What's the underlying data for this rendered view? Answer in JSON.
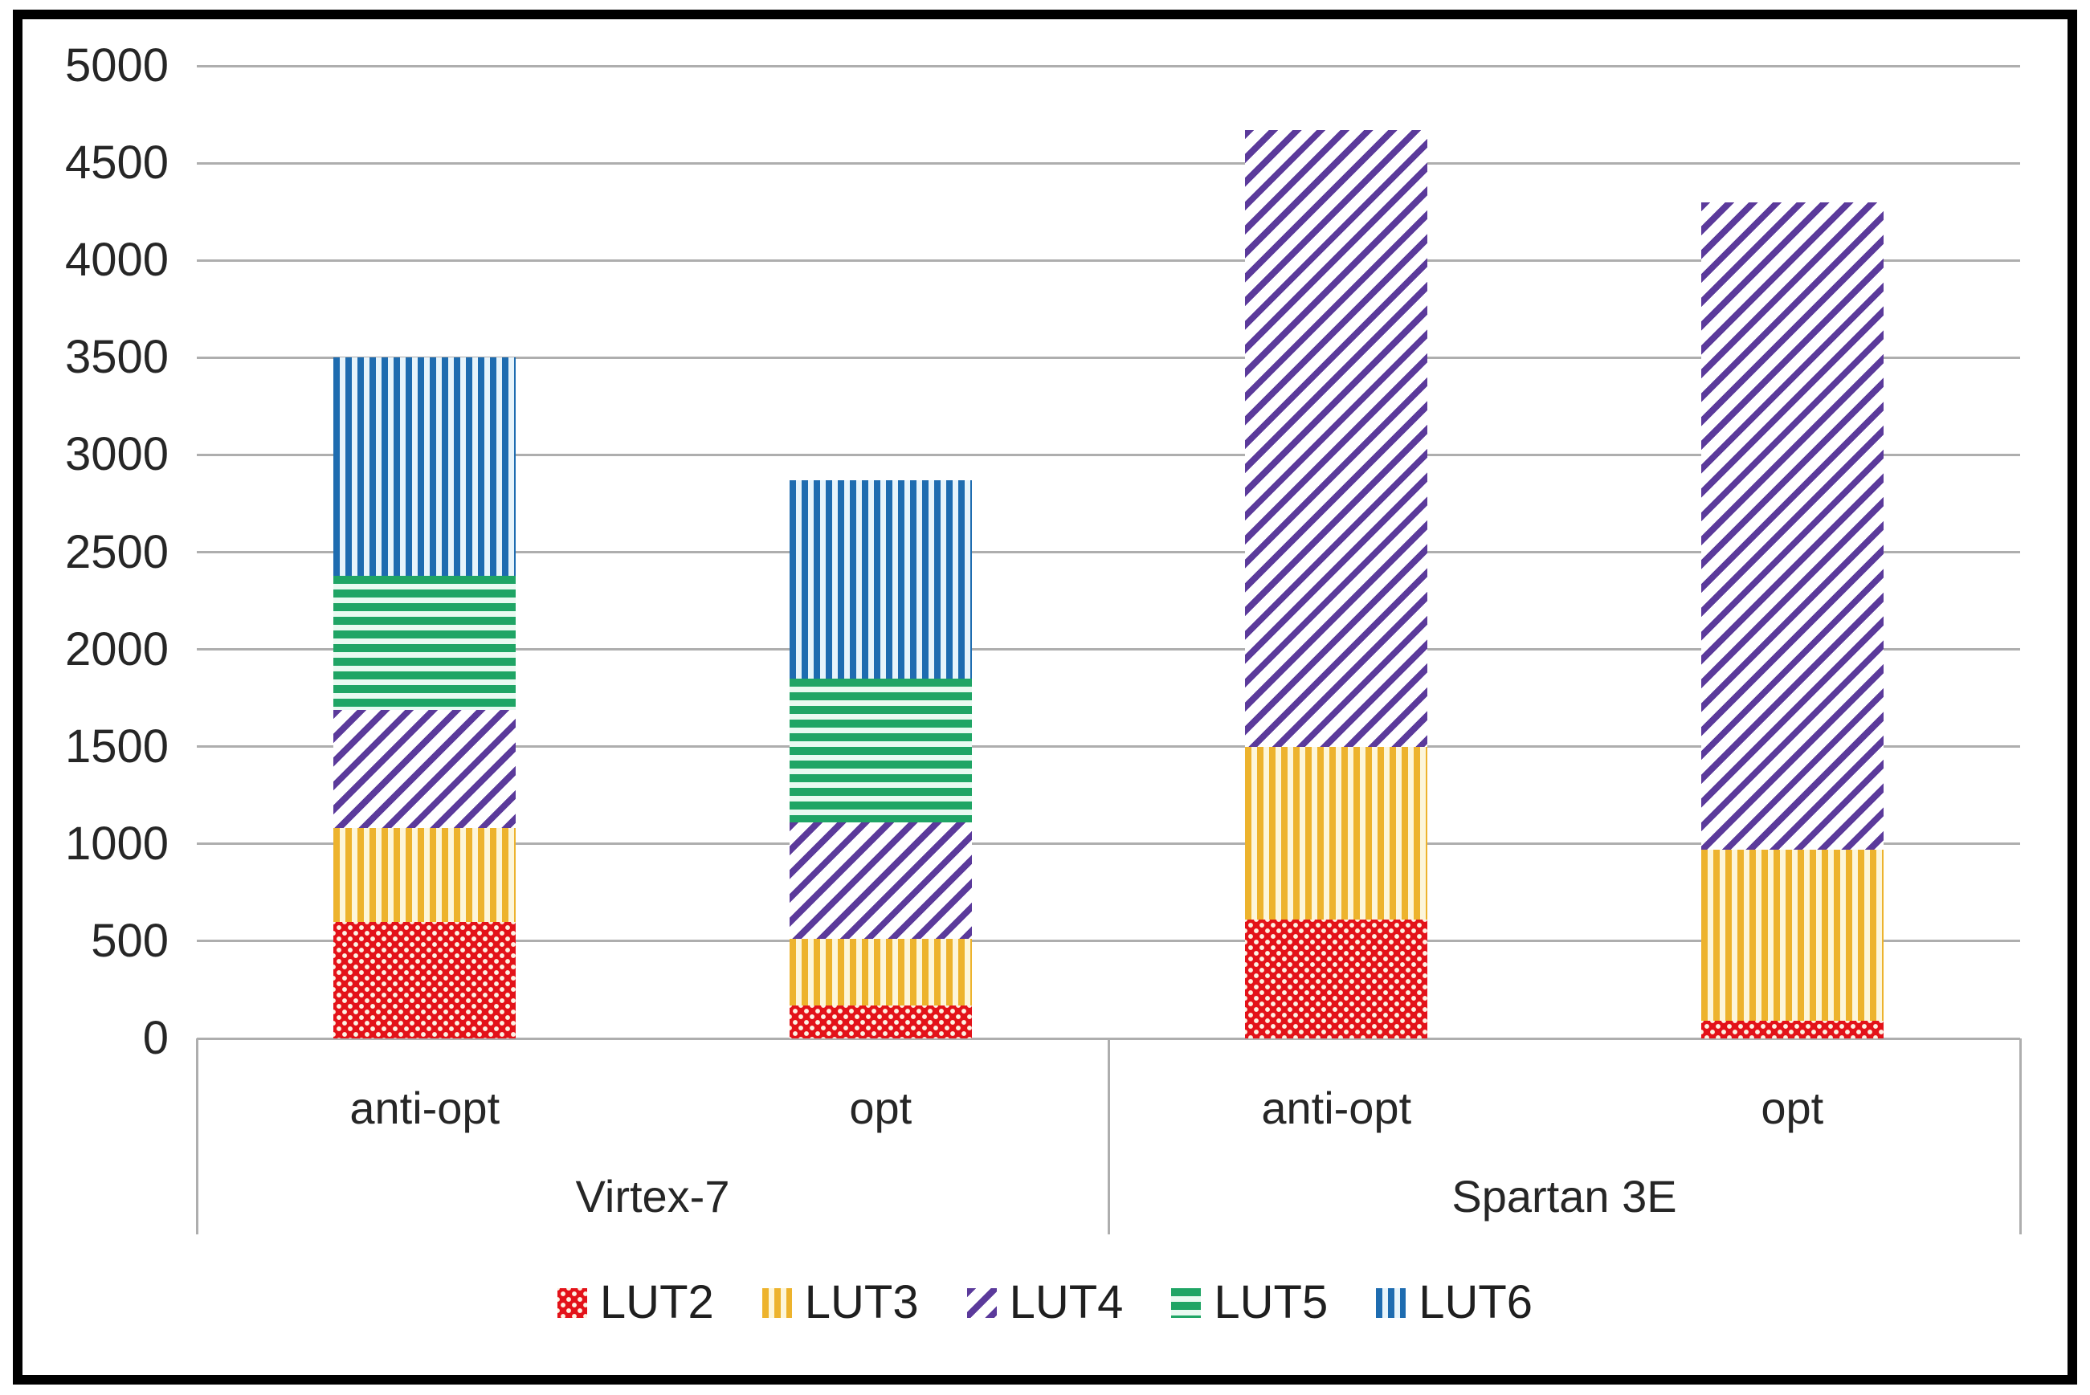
{
  "chart_data": {
    "type": "bar",
    "stacked": true,
    "title": "",
    "xlabel": "",
    "ylabel": "",
    "categories": [
      "anti-opt",
      "opt",
      "anti-opt",
      "opt"
    ],
    "groups": [
      {
        "label": "Virtex-7",
        "categories": [
          0,
          1
        ]
      },
      {
        "label": "Spartan 3E",
        "categories": [
          2,
          3
        ]
      }
    ],
    "series": [
      {
        "name": "LUT2",
        "color": "#e31219",
        "pattern": "dotted",
        "pattern_bg": "#fdf2e4",
        "values": [
          600,
          170,
          610,
          90
        ]
      },
      {
        "name": "LUT3",
        "color": "#edb32d",
        "pattern": "vertical-stripes",
        "pattern_bg": "#fdf6da",
        "values": [
          480,
          340,
          890,
          880
        ]
      },
      {
        "name": "LUT4",
        "color": "#5b3a9b",
        "pattern": "diagonal-stripes",
        "pattern_bg": "#ffffff",
        "values": [
          610,
          600,
          3170,
          3330
        ]
      },
      {
        "name": "LUT5",
        "color": "#1fa565",
        "pattern": "horizontal-stripes",
        "pattern_bg": "#e9faf1",
        "values": [
          690,
          740,
          0,
          0
        ]
      },
      {
        "name": "LUT6",
        "color": "#1e6cb0",
        "pattern": "vertical-stripes",
        "pattern_bg": "#e7f4fb",
        "values": [
          1120,
          1020,
          0,
          0
        ]
      }
    ],
    "stack_totals": [
      3500,
      2870,
      4670,
      4300
    ],
    "ylim": [
      0,
      5000
    ],
    "ytick_step": 500,
    "yticks": [
      "0",
      "500",
      "1000",
      "1500",
      "2000",
      "2500",
      "3000",
      "3500",
      "4000",
      "4500",
      "5000"
    ],
    "grid": true,
    "legend_position": "bottom",
    "legend_labels": [
      "LUT2",
      "LUT3",
      "LUT4",
      "LUT5",
      "LUT6"
    ]
  },
  "colors": {
    "gridline": "#aeaeae",
    "axis_text": "#262626",
    "frame_border": "#000000",
    "background": "#ffffff"
  }
}
